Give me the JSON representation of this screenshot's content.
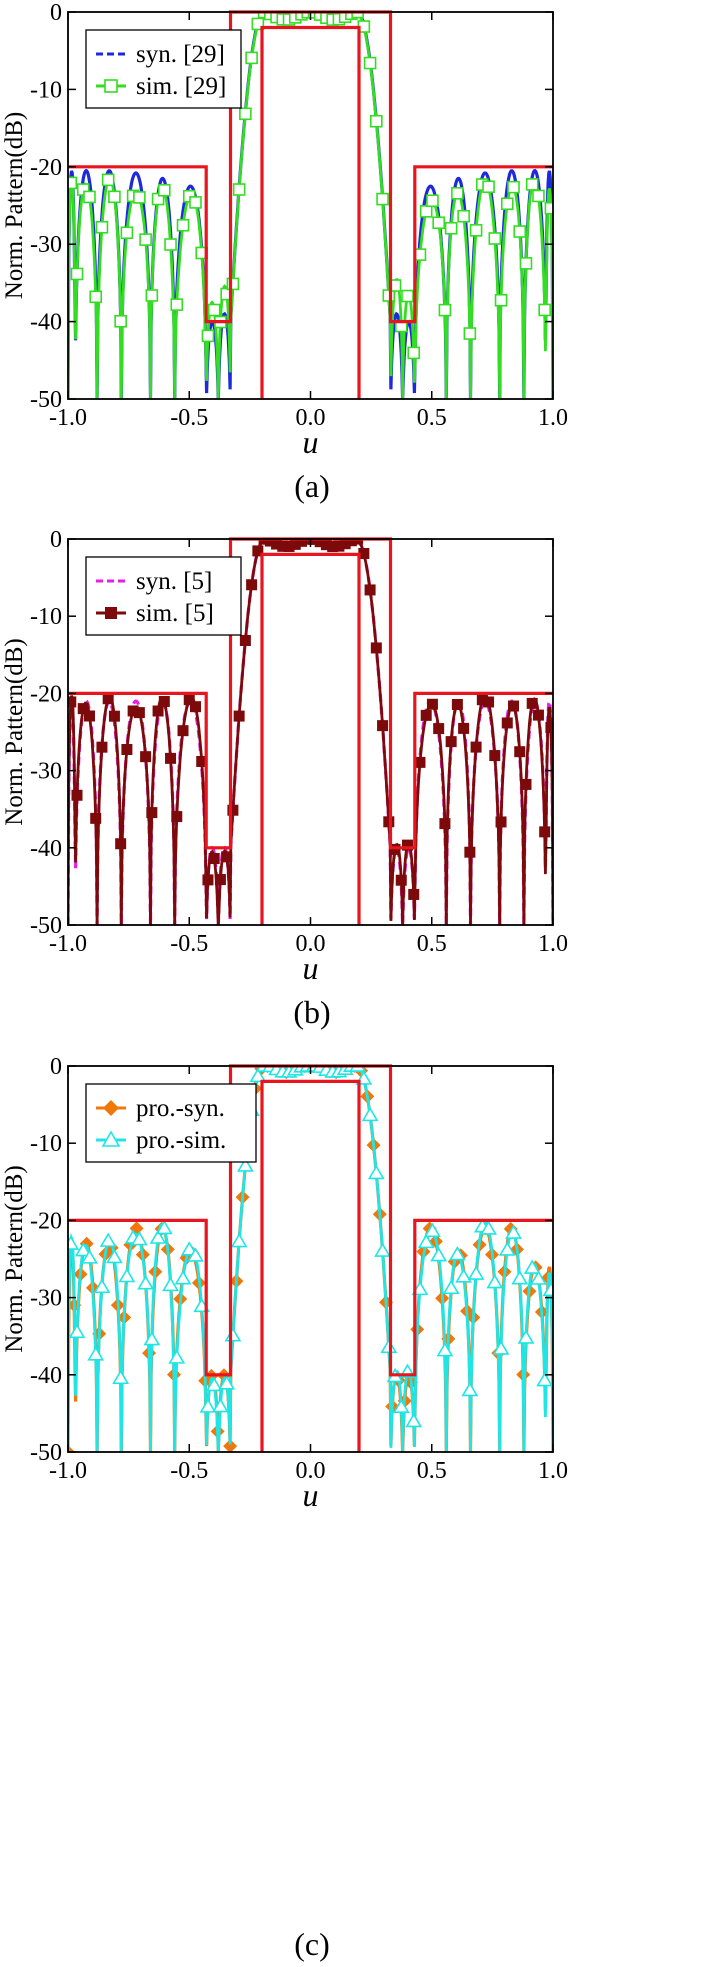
{
  "chart_data": [
    {
      "type": "line",
      "panel_label": "(a)",
      "xlabel": "u",
      "ylabel": "Norm. Pattern(dB)",
      "xlim": [
        -1.0,
        1.0
      ],
      "ylim": [
        -50,
        0
      ],
      "xticks": [
        "-1.0",
        "-0.5",
        "0.0",
        "0.5",
        "1.0"
      ],
      "yticks": [
        "0",
        "-10",
        "-20",
        "-30",
        "-40",
        "-50"
      ],
      "legend": [
        {
          "name": "syn. [29]",
          "color": "#1e28dc",
          "style": "dashed",
          "marker": "none"
        },
        {
          "name": "sim. [29]",
          "color": "#33dd22",
          "style": "solid",
          "marker": "open-square"
        }
      ],
      "mask_color": "#e8141e",
      "mask_upper": {
        "x": [
          -1.0,
          -0.43,
          -0.43,
          -0.33,
          -0.33,
          0.33,
          0.33,
          0.43,
          0.43,
          1.0
        ],
        "y": [
          -20,
          -20,
          -40,
          -40,
          0,
          0,
          -40,
          -40,
          -20,
          -20
        ]
      },
      "mask_lower": {
        "x": [
          -0.2,
          -0.2,
          0.2,
          0.2
        ],
        "y": [
          -50,
          -2,
          -2,
          -50
        ]
      },
      "series": [
        {
          "name": "syn. [29]",
          "peaks": [
            -20.5,
            -20.5,
            -20.8,
            -21.5,
            -22.5,
            -40,
            -39,
            -0.5,
            -0.2,
            -0.3,
            -0.2,
            -0.5,
            -39,
            -40,
            -22.5,
            -21.5,
            -20.8,
            -20.5,
            -20.5
          ]
        },
        {
          "name": "sim. [29]",
          "peaks": [
            -22,
            -22,
            -22.5,
            -23,
            -24,
            -37,
            -35,
            -0.8,
            -0.4,
            -0.5,
            -0.4,
            -0.8,
            -35,
            -37,
            -24,
            -23,
            -22.5,
            -22,
            -22
          ]
        }
      ]
    },
    {
      "type": "line",
      "panel_label": "(b)",
      "xlabel": "u",
      "ylabel": "Norm. Pattern(dB)",
      "xlim": [
        -1.0,
        1.0
      ],
      "ylim": [
        -50,
        0
      ],
      "xticks": [
        "-1.0",
        "-0.5",
        "0.0",
        "0.5",
        "1.0"
      ],
      "yticks": [
        "0",
        "-10",
        "-20",
        "-30",
        "-40",
        "-50"
      ],
      "legend": [
        {
          "name": "syn. [5]",
          "color": "#e61ee6",
          "style": "dashed",
          "marker": "none"
        },
        {
          "name": "sim. [5]",
          "color": "#7d0a0a",
          "style": "solid",
          "marker": "filled-square"
        }
      ],
      "mask_color": "#e8141e",
      "mask_upper": {
        "x": [
          -1.0,
          -0.43,
          -0.43,
          -0.33,
          -0.33,
          0.33,
          0.33,
          0.43,
          0.43,
          1.0
        ],
        "y": [
          -20,
          -20,
          -40,
          -40,
          0,
          0,
          -40,
          -40,
          -20,
          -20
        ]
      },
      "mask_lower": {
        "x": [
          -0.2,
          -0.2,
          0.2,
          0.2
        ],
        "y": [
          -50,
          -2,
          -2,
          -50
        ]
      },
      "series": [
        {
          "name": "syn. [5]",
          "peaks": [
            -21,
            -21,
            -21,
            -21,
            -21,
            -40,
            -40,
            -0.5,
            -0.3,
            -0.5,
            -0.3,
            -0.5,
            -40,
            -40,
            -21,
            -21,
            -21,
            -21,
            -21
          ]
        },
        {
          "name": "sim. [5]",
          "peaks": [
            -21,
            -21,
            -21,
            -21,
            -21,
            -40,
            -40,
            -0.5,
            -0.3,
            -0.5,
            -0.3,
            -0.5,
            -40,
            -40,
            -21,
            -21,
            -21,
            -21,
            -21
          ]
        }
      ]
    },
    {
      "type": "line",
      "panel_label": "(c)",
      "xlabel": "u",
      "ylabel": "Norm. Pattern(dB)",
      "xlim": [
        -1.0,
        1.0
      ],
      "ylim": [
        -50,
        0
      ],
      "xticks": [
        "-1.0",
        "-0.5",
        "0.0",
        "0.5",
        "1.0"
      ],
      "yticks": [
        "0",
        "-10",
        "-20",
        "-30",
        "-40",
        "-50"
      ],
      "legend": [
        {
          "name": "pro.-syn.",
          "color": "#f0780a",
          "style": "solid",
          "marker": "filled-diamond"
        },
        {
          "name": "pro.-sim.",
          "color": "#1ee6e6",
          "style": "solid",
          "marker": "open-triangle"
        }
      ],
      "mask_color": "#e8141e",
      "mask_upper": {
        "x": [
          -1.0,
          -0.43,
          -0.43,
          -0.33,
          -0.33,
          0.33,
          0.33,
          0.43,
          0.43,
          1.0
        ],
        "y": [
          -20,
          -20,
          -40,
          -40,
          0,
          0,
          -40,
          -40,
          -20,
          -20
        ]
      },
      "mask_lower": {
        "x": [
          -0.2,
          -0.2,
          0.2,
          0.2
        ],
        "y": [
          -50,
          -2,
          -2,
          -50
        ]
      },
      "series": [
        {
          "name": "pro.-syn.",
          "peaks": [
            -23,
            -23,
            -21,
            -21,
            -24,
            -40,
            -40,
            -0.5,
            -0.3,
            -0.3,
            -0.3,
            -0.5,
            -40,
            -40,
            -21,
            -24,
            -21,
            -21,
            -26
          ]
        },
        {
          "name": "pro.-sim.",
          "peaks": [
            -23,
            -23,
            -21,
            -21,
            -24,
            -40,
            -40,
            -0.5,
            -0.3,
            -0.3,
            -0.3,
            -0.5,
            -40,
            -40,
            -21,
            -24,
            -21,
            -21,
            -26
          ]
        }
      ]
    }
  ]
}
